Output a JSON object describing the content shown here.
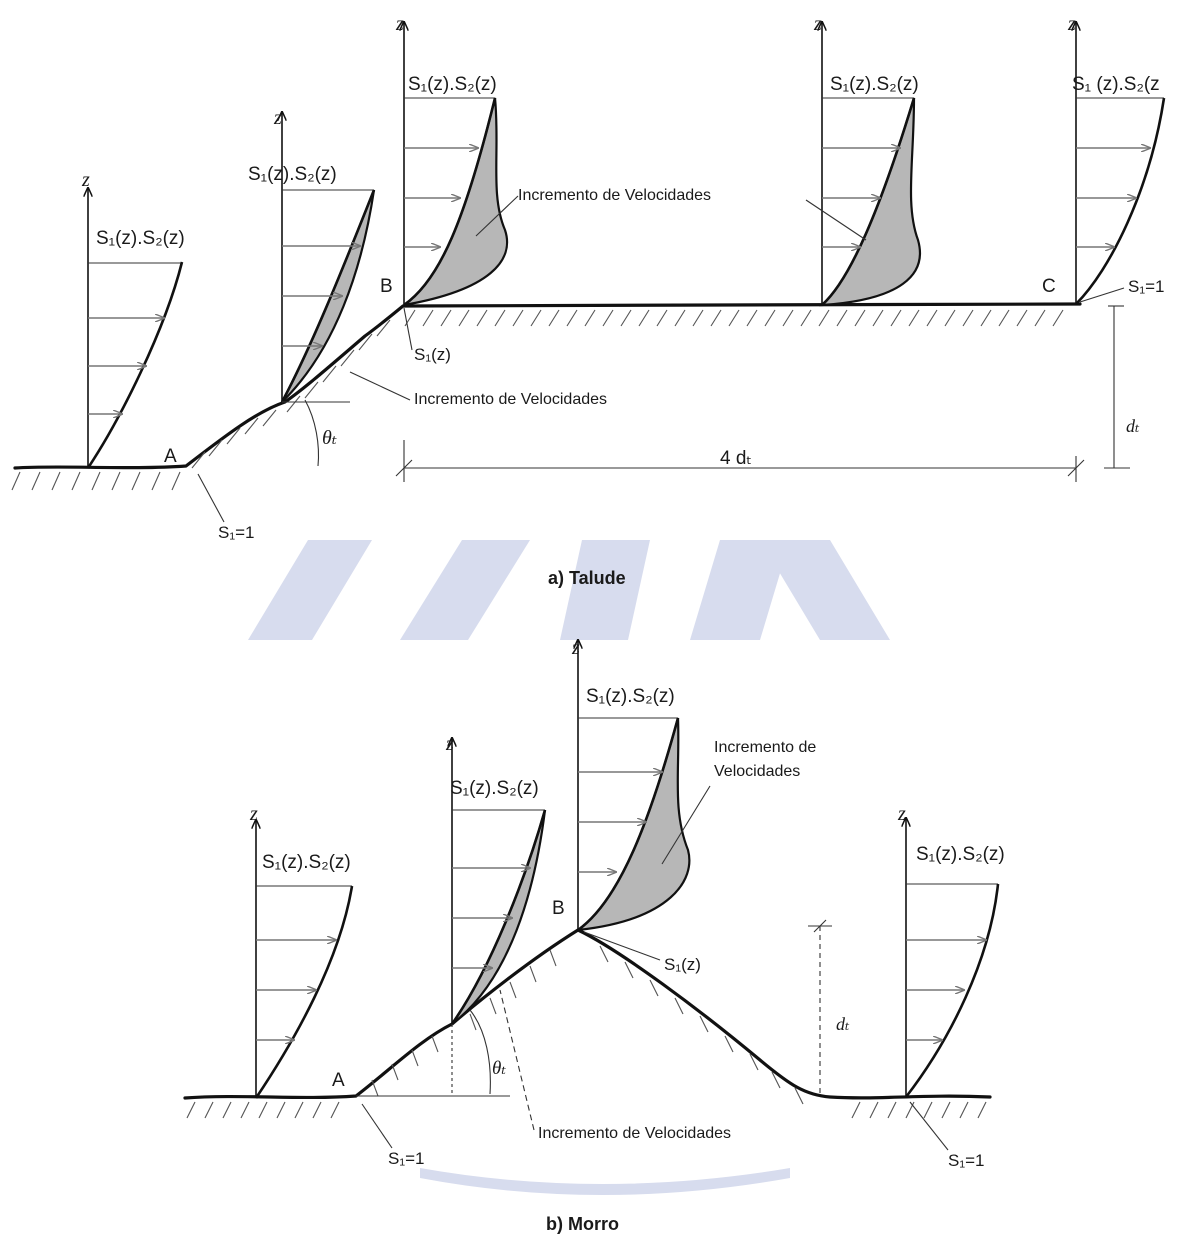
{
  "section_a": {
    "caption": "a) Talude",
    "profile_label": "S₁(z).S₂(z)",
    "profile_label_cut": "S₁ (z).S₂(z",
    "velocity_increment_label": "Incremento de Velocidades",
    "s1z_label": "S₁(z)",
    "s1_equal_one": "S₁=1",
    "axis_z": "z",
    "point_a": "A",
    "point_b": "B",
    "point_c": "C",
    "angle_label": "θₜ",
    "height_label": "dₜ",
    "distance_label": "4 dₜ"
  },
  "section_b": {
    "caption": "b) Morro",
    "profile_label": "S₁(z).S₂(z)",
    "profile_label_alt": "S₁(z).S₂(z)",
    "velocity_increment_label": "Incremento de Velocidades",
    "velocity_increment_line1": "Incremento de",
    "velocity_increment_line2": "Velocidades",
    "s1z_label": "S₁(z)",
    "s1_equal_one": "S₁=1",
    "axis_z": "z",
    "point_a": "A",
    "point_b": "B",
    "angle_label": "θₜ",
    "height_label": "dₜ"
  },
  "colors": {
    "line": "#111111",
    "shading": "#b7b7b7",
    "watermark": "#d7dcee"
  }
}
